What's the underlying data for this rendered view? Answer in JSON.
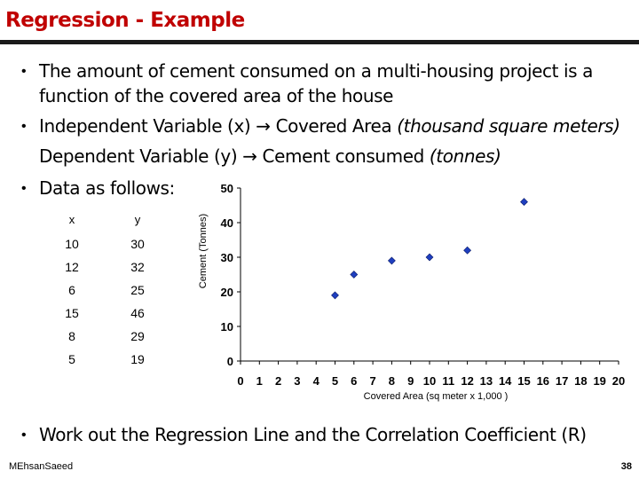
{
  "slide": {
    "title": "Regression - Example",
    "bullets": {
      "b1_line1": "The amount of cement consumed on a multi-housing project is a",
      "b1_line2": "function of the covered area of the house",
      "b2_line1_a": "Independent Variable (x) ",
      "b2_arrow": "→",
      "b2_line1_b": " Covered Area ",
      "b2_line1_c": "(thousand square meters)",
      "b2_line2_a": "Dependent Variable (y) ",
      "b2_line2_b": " Cement consumed ",
      "b2_line2_c": "(tonnes)",
      "b3": "Data as follows:",
      "b4": "Work out the Regression Line and the Correlation Coefficient (R)"
    },
    "table": {
      "headers": [
        "x",
        "y"
      ],
      "rows": [
        [
          "10",
          "30"
        ],
        [
          "12",
          "32"
        ],
        [
          "6",
          "25"
        ],
        [
          "15",
          "46"
        ],
        [
          "8",
          "29"
        ],
        [
          "5",
          "19"
        ]
      ]
    },
    "footer": "MEhsanSaeed",
    "page_number": "38"
  },
  "chart_data": {
    "type": "scatter",
    "x": [
      10,
      12,
      6,
      15,
      8,
      5
    ],
    "y": [
      30,
      32,
      25,
      46,
      29,
      19
    ],
    "xlabel": "Covered Area (sq meter x 1,000 )",
    "ylabel": "Cement (Tonnes)",
    "xlim": [
      0,
      20
    ],
    "ylim": [
      0,
      50
    ],
    "xticks": [
      0,
      1,
      2,
      3,
      4,
      5,
      6,
      7,
      8,
      9,
      10,
      11,
      12,
      13,
      14,
      15,
      16,
      17,
      18,
      19,
      20
    ],
    "yticks": [
      0,
      10,
      20,
      30,
      40,
      50
    ],
    "grid": false,
    "marker_color": "#1f3fbf"
  }
}
